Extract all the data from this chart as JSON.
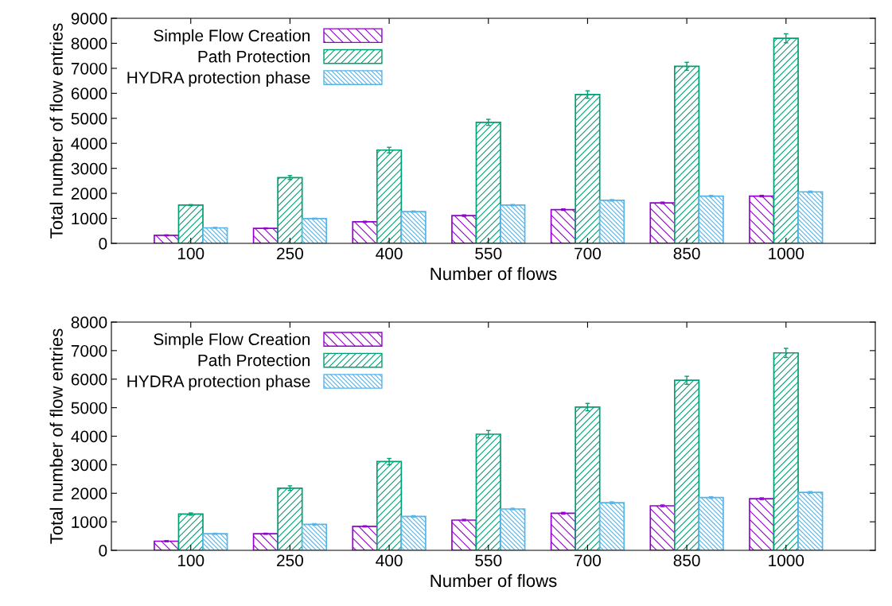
{
  "chart_data": [
    {
      "type": "bar",
      "xlabel": "Number of flows",
      "ylabel": "Total number of flow entries",
      "categories": [
        "100",
        "250",
        "400",
        "550",
        "700",
        "850",
        "1000"
      ],
      "ylim": [
        0,
        9000
      ],
      "yticks": [
        0,
        1000,
        2000,
        3000,
        4000,
        5000,
        6000,
        7000,
        8000,
        9000
      ],
      "legend": "top left",
      "grid": false,
      "series": [
        {
          "name": "Simple Flow Creation",
          "color": "#9400d3",
          "values": [
            320,
            600,
            860,
            1110,
            1350,
            1620,
            1890
          ],
          "errors": [
            20,
            20,
            25,
            30,
            30,
            30,
            30
          ]
        },
        {
          "name": "Path Protection",
          "color": "#009e73",
          "values": [
            1530,
            2630,
            3730,
            4840,
            5950,
            7080,
            8200
          ],
          "errors": [
            20,
            80,
            110,
            120,
            150,
            160,
            180
          ]
        },
        {
          "name": "HYDRA protection phase",
          "color": "#56b4e9",
          "values": [
            620,
            990,
            1270,
            1530,
            1720,
            1890,
            2060
          ],
          "errors": [
            20,
            20,
            25,
            25,
            30,
            30,
            30
          ]
        }
      ]
    },
    {
      "type": "bar",
      "xlabel": "Number of flows",
      "ylabel": "Total number of flow entries",
      "categories": [
        "100",
        "250",
        "400",
        "550",
        "700",
        "850",
        "1000"
      ],
      "ylim": [
        0,
        8000
      ],
      "yticks": [
        0,
        1000,
        2000,
        3000,
        4000,
        5000,
        6000,
        7000,
        8000
      ],
      "legend": "top left",
      "grid": false,
      "series": [
        {
          "name": "Simple Flow Creation",
          "color": "#9400d3",
          "values": [
            320,
            580,
            840,
            1060,
            1300,
            1560,
            1810
          ],
          "errors": [
            20,
            20,
            20,
            25,
            30,
            30,
            30
          ]
        },
        {
          "name": "Path Protection",
          "color": "#009e73",
          "values": [
            1270,
            2180,
            3110,
            4070,
            5020,
            5960,
            6920
          ],
          "errors": [
            40,
            80,
            110,
            130,
            130,
            140,
            160
          ]
        },
        {
          "name": "HYDRA protection phase",
          "color": "#56b4e9",
          "values": [
            580,
            910,
            1190,
            1450,
            1670,
            1850,
            2030
          ],
          "errors": [
            20,
            25,
            25,
            25,
            30,
            30,
            30
          ]
        }
      ]
    }
  ]
}
